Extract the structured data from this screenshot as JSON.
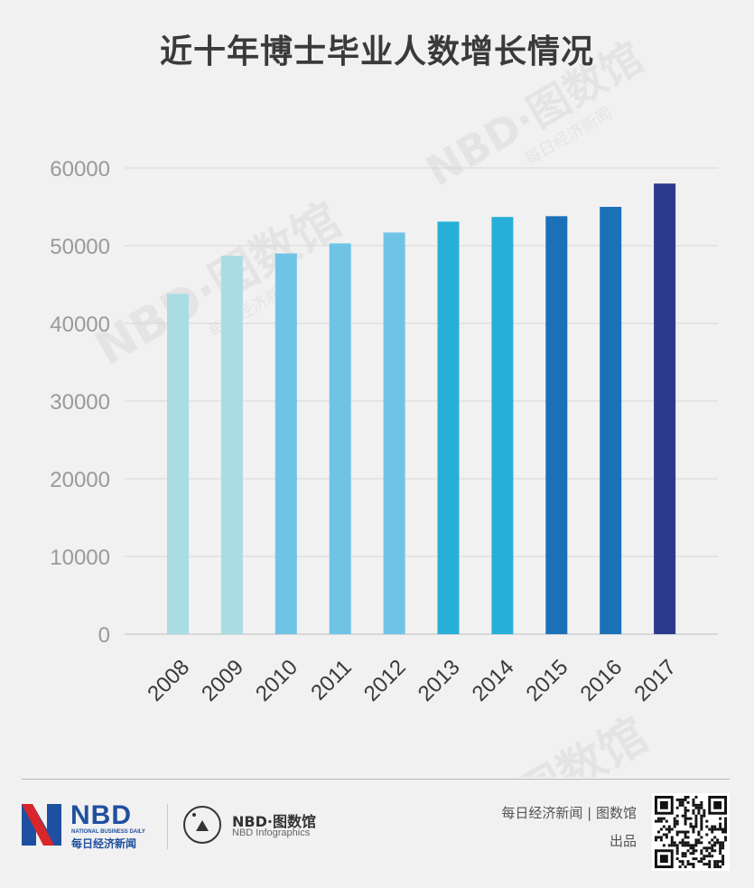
{
  "title": "近十年博士毕业人数增长情况",
  "chart_data": {
    "type": "bar",
    "title": "近十年博士毕业人数增长情况",
    "categories": [
      "2008",
      "2009",
      "2010",
      "2011",
      "2012",
      "2013",
      "2014",
      "2015",
      "2016",
      "2017"
    ],
    "values": [
      43800,
      48700,
      49000,
      50300,
      51700,
      53100,
      53700,
      53800,
      55000,
      58000
    ],
    "colors": [
      "#a9dce3",
      "#a9dce3",
      "#6fc4e6",
      "#6fc4e6",
      "#6fc4e6",
      "#27afd8",
      "#27afd8",
      "#1b71b8",
      "#1b71b8",
      "#2b3a8c"
    ],
    "ylim": [
      0,
      60000
    ],
    "yticks": [
      "0",
      "10000",
      "20000",
      "30000",
      "40000",
      "50000",
      "60000"
    ],
    "grid": true,
    "xlabel": "",
    "ylabel": ""
  },
  "footer": {
    "logo_word": "NBD",
    "logo_sub": "NATIONAL BUSINESS DAILY",
    "logo_cn": "每日经济新闻",
    "infographics_word": "NBD·图数馆",
    "infographics_sub": "NBD Infographics",
    "credit_line1": "每日经济新闻 | 图数馆",
    "credit_line2": "出品"
  },
  "watermark": "NBD·图数馆",
  "watermark_sub": "每日经济新闻",
  "colors": {
    "background": "#f1f1f1",
    "brand_blue": "#1f4fa0",
    "brand_red": "#d9262a"
  }
}
